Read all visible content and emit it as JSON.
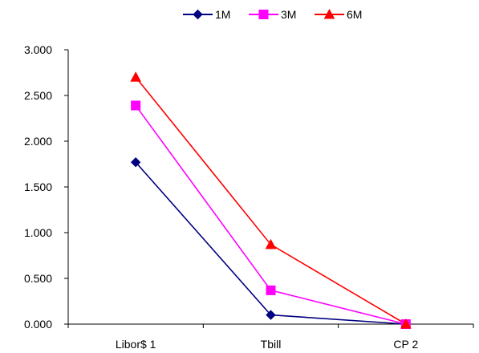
{
  "chart_data": {
    "type": "line",
    "categories": [
      "Libor$ 1",
      "Tbill",
      "CP 2"
    ],
    "series": [
      {
        "name": "1M",
        "values": [
          1.77,
          0.1,
          0.0
        ],
        "color": "#000080",
        "marker": "diamond"
      },
      {
        "name": "3M",
        "values": [
          2.39,
          0.37,
          0.0
        ],
        "color": "#FF00FF",
        "marker": "square"
      },
      {
        "name": "6M",
        "values": [
          2.7,
          0.87,
          0.0
        ],
        "color": "#FF0000",
        "marker": "triangle"
      }
    ],
    "y_ticks": [
      "0.000",
      "0.500",
      "1.000",
      "1.500",
      "2.000",
      "2.500",
      "3.000"
    ],
    "ylim": [
      0,
      3
    ],
    "grid": false,
    "legend_position": "top"
  }
}
